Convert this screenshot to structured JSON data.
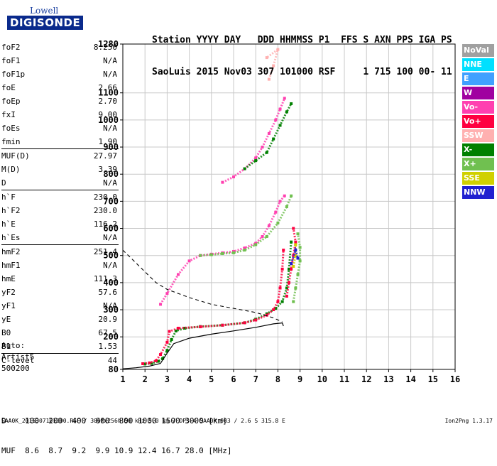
{
  "logo": {
    "line1": "Lowell",
    "line2": "DIGISONDE"
  },
  "header": {
    "line1": "Station YYYY DAY   DDD HHMMSS P1  FFS S AXN PPS IGA PS",
    "line2": "SaoLuis 2015 Nov03 307 101000 RSF     1 715 100 00- 11"
  },
  "params": [
    {
      "k": "foF2",
      "v": "8.250"
    },
    {
      "k": "foF1",
      "v": "N/A"
    },
    {
      "k": "foF1p",
      "v": "N/A"
    },
    {
      "k": "foE",
      "v": "2.66"
    },
    {
      "k": "foEp",
      "v": "2.70"
    },
    {
      "k": "fxI",
      "v": "9.00"
    },
    {
      "k": "foEs",
      "v": "N/A"
    },
    {
      "k": "fmin",
      "v": "1.90"
    },
    {
      "k": "MUF(D)",
      "v": "27.97"
    },
    {
      "k": "M(D)",
      "v": "3.39"
    },
    {
      "k": "D",
      "v": "N/A"
    },
    {
      "k": "h`F",
      "v": "230.0"
    },
    {
      "k": "h`F2",
      "v": "230.0"
    },
    {
      "k": "h`E",
      "v": "116.2"
    },
    {
      "k": "h`Es",
      "v": "N/A"
    },
    {
      "k": "hmF2",
      "v": "251.4"
    },
    {
      "k": "hmF1",
      "v": "N/A"
    },
    {
      "k": "hmE",
      "v": "111.3"
    },
    {
      "k": "yF2",
      "v": "57.6"
    },
    {
      "k": "yF1",
      "v": "N/A"
    },
    {
      "k": "yE",
      "v": "20.9"
    },
    {
      "k": "B0",
      "v": "67.5"
    },
    {
      "k": "B1",
      "v": "1.53"
    },
    {
      "k": "C-level",
      "v": "44"
    }
  ],
  "auto": {
    "l1": "Auto:",
    "l2": "Artist5",
    "l3": "500200"
  },
  "legend": [
    {
      "label": "NoVal",
      "color": "#a0a0a0"
    },
    {
      "label": "NNE",
      "color": "#00e0ff"
    },
    {
      "label": "E",
      "color": "#40a0ff"
    },
    {
      "label": "W",
      "color": "#a000a0"
    },
    {
      "label": "Vo-",
      "color": "#ff40b0"
    },
    {
      "label": "Vo+",
      "color": "#ff0040"
    },
    {
      "label": "SSW",
      "color": "#ffb0b0"
    },
    {
      "label": "X-",
      "color": "#008000"
    },
    {
      "label": "X+",
      "color": "#70c050"
    },
    {
      "label": "SSE",
      "color": "#d0d000"
    },
    {
      "label": "NNW",
      "color": "#2020d0"
    }
  ],
  "muf_table": {
    "line1": "D    100  200  400  600  800 1000 1500 3000 [km]",
    "line2": "MUF  8.6  8.7  9.2  9.9 10.9 12.4 16.7 28.0 [MHz]"
  },
  "footer": "SAA0K_2015307101000.RSF / 300fx256h 50 kHz 5.0 km / DPS-4 SAA0K 903 / 2.6 S 315.8 E",
  "version": "Ion2Png 1.3.17",
  "chart_data": {
    "type": "scatter",
    "xlim": [
      1,
      16
    ],
    "ylim": [
      80,
      1280
    ],
    "x_ticks": [
      1,
      2,
      3,
      4,
      5,
      6,
      7,
      8,
      9,
      10,
      11,
      12,
      13,
      14,
      15,
      16
    ],
    "y_ticks": [
      80,
      200,
      300,
      400,
      500,
      600,
      700,
      800,
      900,
      1000,
      1100,
      1280
    ],
    "grid": true,
    "traces": [
      {
        "name": "X-",
        "color": "#008000",
        "points": [
          [
            2.0,
            100
          ],
          [
            2.3,
            102
          ],
          [
            2.6,
            110
          ],
          [
            2.8,
            120
          ],
          [
            3.0,
            150
          ],
          [
            3.2,
            190
          ],
          [
            3.4,
            222
          ],
          [
            3.8,
            232
          ],
          [
            4.5,
            238
          ],
          [
            5.5,
            243
          ],
          [
            6.5,
            252
          ],
          [
            7.0,
            265
          ],
          [
            7.5,
            285
          ],
          [
            7.9,
            305
          ],
          [
            8.2,
            330
          ],
          [
            8.4,
            380
          ],
          [
            8.5,
            450
          ],
          [
            8.6,
            550
          ]
        ]
      },
      {
        "name": "Vo+",
        "color": "#ff0040",
        "points": [
          [
            1.9,
            101
          ],
          [
            2.2,
            104
          ],
          [
            2.5,
            112
          ],
          [
            2.7,
            135
          ],
          [
            3.0,
            180
          ],
          [
            3.1,
            220
          ],
          [
            3.5,
            232
          ],
          [
            4.5,
            237
          ],
          [
            5.5,
            243
          ],
          [
            6.5,
            252
          ],
          [
            7.0,
            262
          ],
          [
            7.5,
            280
          ],
          [
            7.8,
            300
          ],
          [
            8.0,
            330
          ],
          [
            8.1,
            380
          ],
          [
            8.2,
            450
          ],
          [
            8.25,
            520
          ]
        ]
      },
      {
        "name": "Vo-",
        "color": "#ff40b0",
        "points": [
          [
            2.7,
            320
          ],
          [
            3.0,
            360
          ],
          [
            3.5,
            430
          ],
          [
            4.0,
            480
          ],
          [
            4.5,
            500
          ],
          [
            5.0,
            505
          ],
          [
            5.5,
            510
          ],
          [
            6.0,
            515
          ],
          [
            6.5,
            528
          ],
          [
            7.0,
            545
          ],
          [
            7.3,
            570
          ],
          [
            7.6,
            610
          ],
          [
            7.9,
            660
          ],
          [
            8.1,
            700
          ],
          [
            8.3,
            720
          ]
        ]
      },
      {
        "name": "Vo-",
        "color": "#ff40b0",
        "points": [
          [
            5.5,
            770
          ],
          [
            6.0,
            790
          ],
          [
            6.5,
            820
          ],
          [
            7.0,
            860
          ],
          [
            7.3,
            900
          ],
          [
            7.6,
            950
          ],
          [
            7.9,
            1000
          ],
          [
            8.1,
            1040
          ],
          [
            8.3,
            1080
          ]
        ]
      },
      {
        "name": "X+",
        "color": "#70c050",
        "points": [
          [
            4.5,
            500
          ],
          [
            5.0,
            503
          ],
          [
            5.5,
            507
          ],
          [
            6.0,
            510
          ],
          [
            6.5,
            520
          ],
          [
            7.0,
            540
          ],
          [
            7.5,
            570
          ],
          [
            8.0,
            620
          ],
          [
            8.4,
            680
          ],
          [
            8.6,
            720
          ]
        ]
      },
      {
        "name": "X-",
        "color": "#008000",
        "points": [
          [
            6.5,
            820
          ],
          [
            7.0,
            850
          ],
          [
            7.5,
            880
          ],
          [
            7.8,
            930
          ],
          [
            8.1,
            980
          ],
          [
            8.4,
            1030
          ],
          [
            8.6,
            1060
          ]
        ]
      },
      {
        "name": "Vo+",
        "color": "#ff0040",
        "points": [
          [
            8.4,
            350
          ],
          [
            8.5,
            400
          ],
          [
            8.6,
            450
          ],
          [
            8.7,
            500
          ],
          [
            8.8,
            550
          ],
          [
            8.7,
            600
          ]
        ]
      },
      {
        "name": "X+",
        "color": "#70c050",
        "points": [
          [
            8.7,
            330
          ],
          [
            8.8,
            380
          ],
          [
            8.9,
            430
          ],
          [
            9.0,
            480
          ],
          [
            9.0,
            530
          ],
          [
            8.9,
            580
          ]
        ]
      },
      {
        "name": "SSE",
        "color": "#d0d000",
        "points": [
          [
            8.7,
            460
          ],
          [
            8.8,
            500
          ],
          [
            8.8,
            540
          ]
        ]
      },
      {
        "name": "NNW",
        "color": "#2020d0",
        "points": [
          [
            8.6,
            470
          ],
          [
            8.8,
            520
          ],
          [
            8.9,
            490
          ]
        ]
      },
      {
        "name": "SSW",
        "color": "#ffb0b0",
        "points": [
          [
            7.6,
            1150
          ],
          [
            7.8,
            1200
          ],
          [
            8.0,
            1260
          ],
          [
            7.5,
            1230
          ]
        ]
      }
    ],
    "profile_solid": [
      [
        1.0,
        82
      ],
      [
        1.6,
        86
      ],
      [
        2.2,
        92
      ],
      [
        2.7,
        102
      ],
      [
        3.0,
        140
      ],
      [
        3.3,
        175
      ],
      [
        4.0,
        195
      ],
      [
        5.0,
        210
      ],
      [
        6.0,
        222
      ],
      [
        7.0,
        235
      ],
      [
        7.8,
        248
      ],
      [
        8.2,
        251
      ],
      [
        8.25,
        240
      ]
    ],
    "profile_dashed": [
      [
        1.0,
        520
      ],
      [
        1.5,
        480
      ],
      [
        2.0,
        440
      ],
      [
        2.5,
        400
      ],
      [
        3.0,
        375
      ],
      [
        4.0,
        345
      ],
      [
        5.0,
        320
      ],
      [
        6.0,
        305
      ],
      [
        7.0,
        290
      ],
      [
        7.8,
        270
      ],
      [
        8.2,
        255
      ]
    ]
  }
}
